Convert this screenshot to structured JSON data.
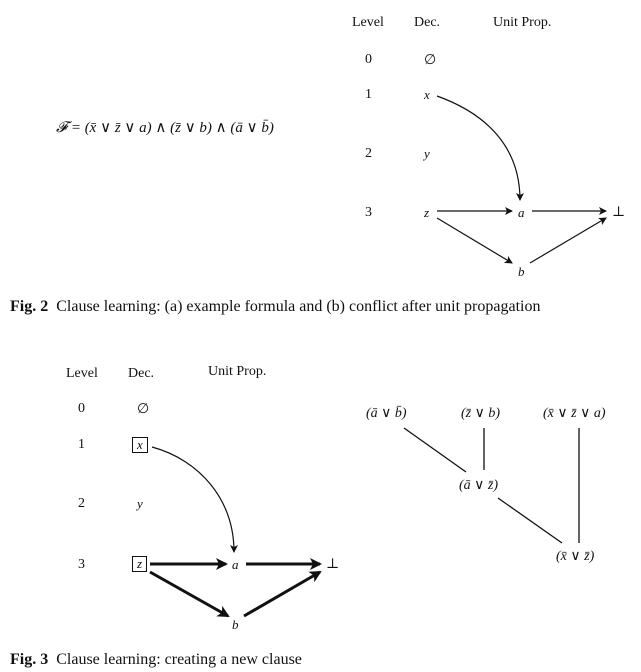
{
  "fig2": {
    "formula": "𝓕 = (x̄ ∨ z̄ ∨ a) ∧ (z̄ ∨ b) ∧ (ā ∨ b̄)",
    "headers": {
      "level": "Level",
      "dec": "Dec.",
      "unit": "Unit Prop."
    },
    "levels": [
      "0",
      "1",
      "2",
      "3"
    ],
    "decisions": [
      "∅",
      "x",
      "y",
      "z"
    ],
    "nodes": {
      "a": "a",
      "b": "b",
      "bottom": "⊥"
    },
    "caption_label": "Fig. 2",
    "caption_text": "Clause learning: (a) example formula and (b) conflict after unit propagation"
  },
  "fig3": {
    "headers": {
      "level": "Level",
      "dec": "Dec.",
      "unit": "Unit Prop."
    },
    "levels": [
      "0",
      "1",
      "2",
      "3"
    ],
    "decisions": [
      "∅",
      "x",
      "y",
      "z"
    ],
    "nodes": {
      "a": "a",
      "b": "b",
      "bottom": "⊥"
    },
    "clauses": {
      "c1": "(ā ∨ b̄)",
      "c2": "(z̄ ∨ b)",
      "c3": "(x̄ ∨ z̄ ∨ a)",
      "c4": "(ā ∨ z̄)",
      "c5": "(x̄ ∨ z̄)"
    },
    "caption_label": "Fig. 3",
    "caption_text": "Clause learning: creating a new clause"
  }
}
